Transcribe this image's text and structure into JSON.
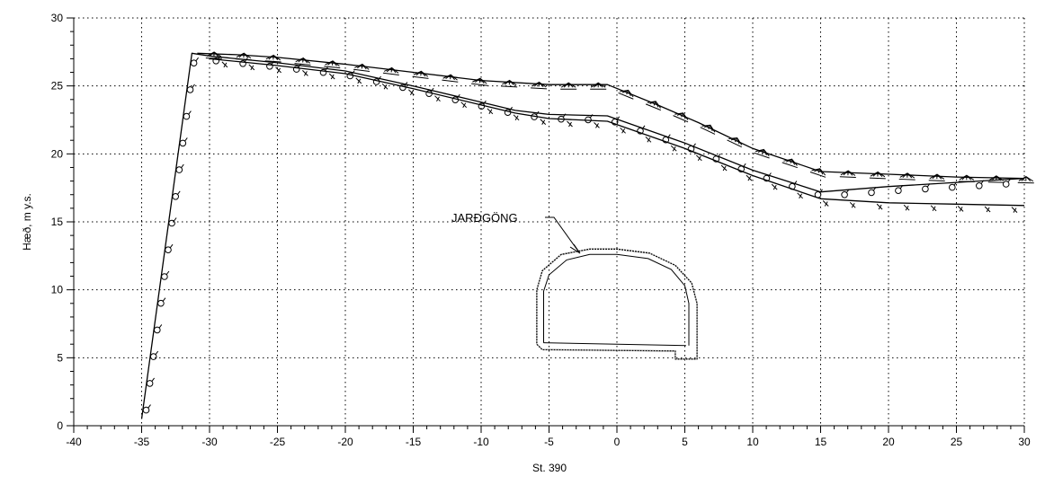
{
  "chart_data": {
    "type": "line",
    "title": "",
    "xlabel": "St. 390",
    "ylabel": "Hæð, m y.s.",
    "xlim": [
      -40,
      30
    ],
    "ylim": [
      0,
      30
    ],
    "x_ticks": [
      -40,
      -35,
      -30,
      -25,
      -20,
      -15,
      -10,
      -5,
      0,
      5,
      10,
      15,
      20,
      25,
      30
    ],
    "y_ticks": [
      0,
      5,
      10,
      15,
      20,
      25,
      30
    ],
    "grid": true,
    "annotation": {
      "text": "JARÐGÖNG",
      "target": "tunnel cross-section"
    },
    "series": [
      {
        "x": [
          -30.9,
          -28,
          -25,
          -20,
          -15,
          -10,
          -5,
          -0.7,
          3,
          6,
          10,
          15,
          20,
          25,
          30
        ],
        "y": [
          27.4,
          27.3,
          27.1,
          26.6,
          26.0,
          25.4,
          25.1,
          25.1,
          23.6,
          22.3,
          20.4,
          18.7,
          18.5,
          18.3,
          18.2
        ]
      },
      {
        "x": [
          -35,
          -31.3,
          -30,
          -25,
          -20,
          -15,
          -10,
          -7.5,
          -5,
          -0.7,
          5,
          10,
          15,
          20,
          25,
          30
        ],
        "y": [
          0.5,
          27.4,
          27.2,
          26.7,
          26.1,
          25.0,
          23.8,
          23.2,
          22.9,
          22.8,
          20.8,
          18.8,
          17.2,
          17.6,
          17.9,
          18.2
        ]
      },
      {
        "x": [
          -30,
          -25,
          -20,
          -15,
          -10,
          -7.5,
          -5,
          -0.7,
          5,
          10,
          15,
          20,
          25,
          30
        ],
        "y": [
          27.0,
          26.5,
          25.9,
          24.8,
          23.6,
          23.0,
          22.6,
          22.4,
          20.4,
          18.4,
          16.7,
          16.4,
          16.3,
          16.2
        ]
      }
    ],
    "tunnel": {
      "outline": [
        [
          -5.9,
          6.0
        ],
        [
          -5.9,
          10.0
        ],
        [
          -5.5,
          11.4
        ],
        [
          -4.1,
          12.6
        ],
        [
          -2.0,
          13.0
        ],
        [
          0.0,
          13.0
        ],
        [
          2.4,
          12.7
        ],
        [
          4.3,
          11.8
        ],
        [
          5.5,
          10.5
        ],
        [
          5.9,
          9.0
        ],
        [
          5.9,
          4.9
        ],
        [
          4.3,
          4.9
        ],
        [
          4.3,
          5.5
        ],
        [
          -5.5,
          5.6
        ],
        [
          -5.9,
          6.0
        ]
      ],
      "floor": [
        [
          -5.4,
          6.1
        ],
        [
          5.1,
          5.9
        ]
      ]
    }
  }
}
